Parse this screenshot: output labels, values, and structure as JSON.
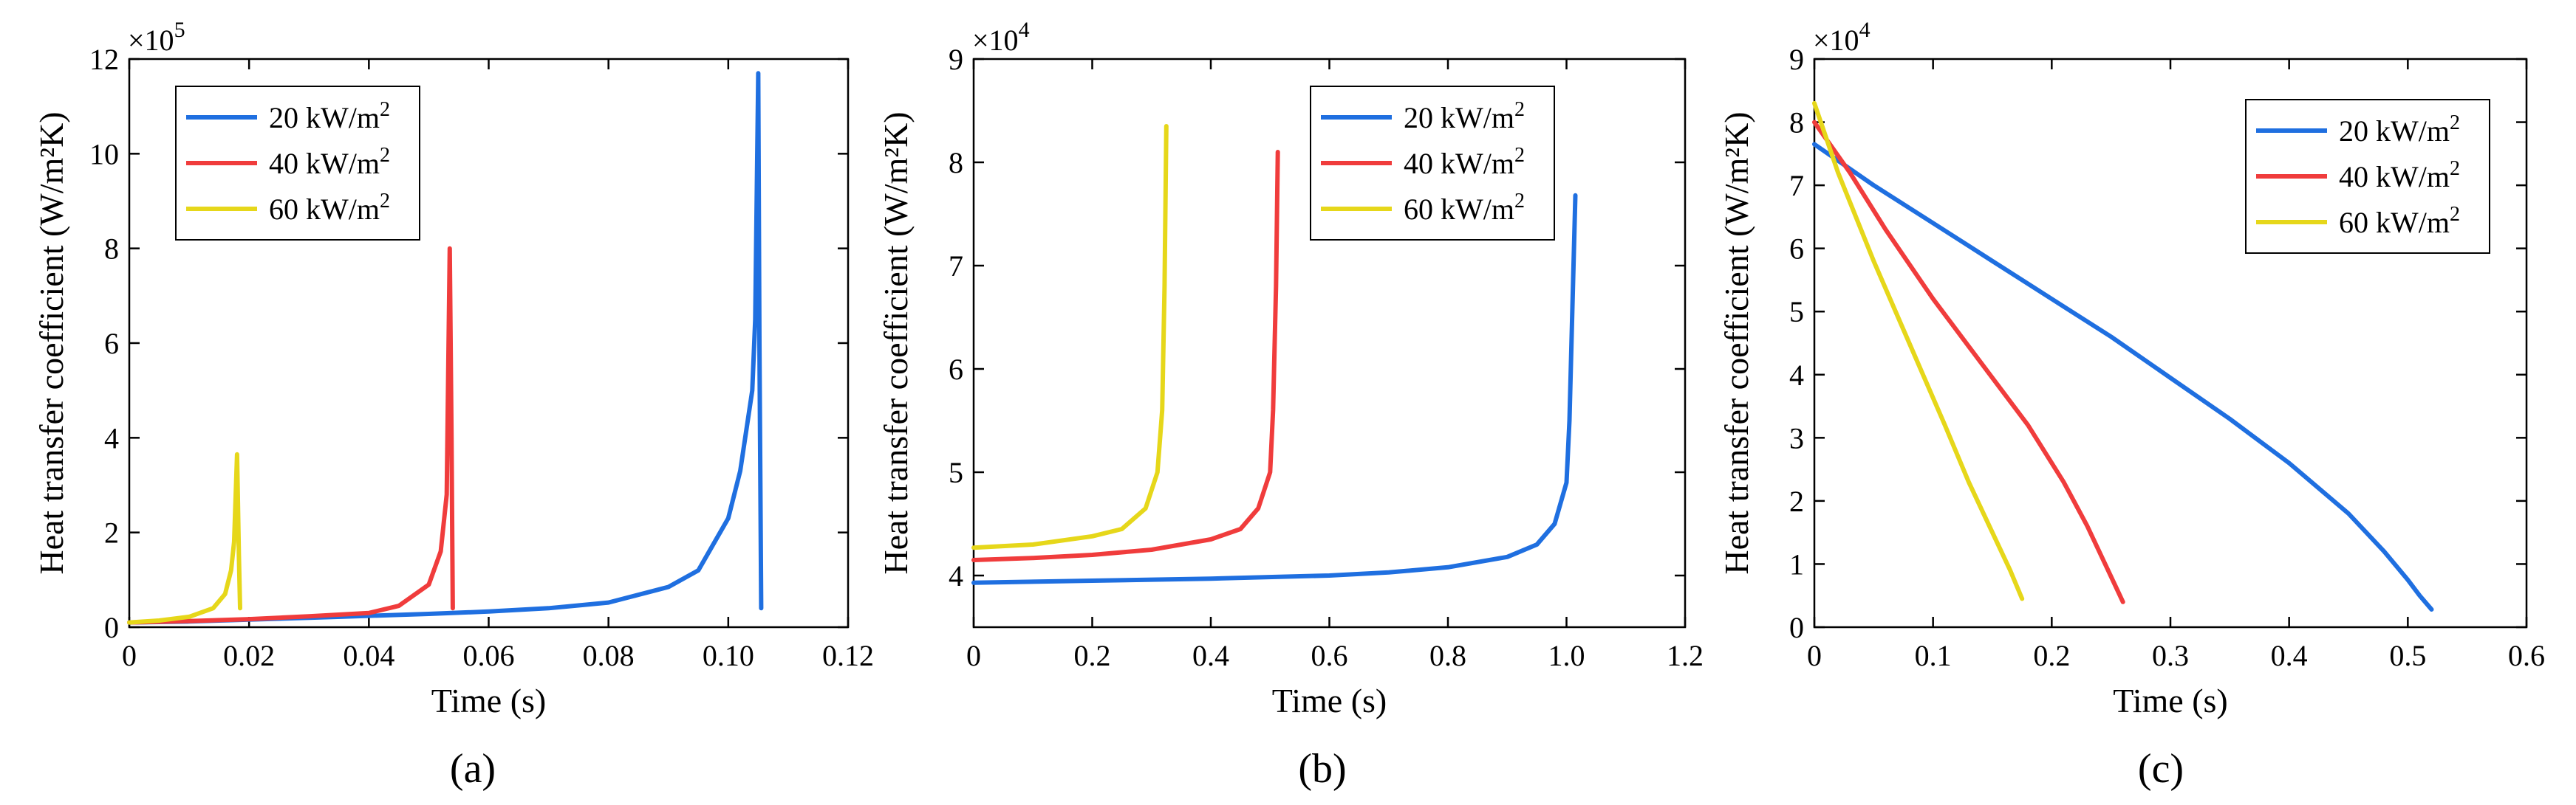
{
  "chart_data": [
    {
      "type": "line",
      "panel": "a",
      "caption": "(a)",
      "xlabel": "Time (s)",
      "ylabel": "Heat transfer coefficient (W/m²K)",
      "y_multiplier": "×10",
      "y_exponent": "5",
      "xlim": [
        0,
        0.12
      ],
      "ylim": [
        0,
        12
      ],
      "xticks": [
        0,
        0.02,
        0.04,
        0.06,
        0.08,
        0.1,
        0.12
      ],
      "xtick_labels": [
        "0",
        "0.02",
        "0.04",
        "0.06",
        "0.08",
        "0.10",
        "0.12"
      ],
      "yticks": [
        0,
        2,
        4,
        6,
        8,
        10,
        12
      ],
      "ytick_labels": [
        "0",
        "2",
        "4",
        "6",
        "8",
        "10",
        "12"
      ],
      "legend_position": "top-left",
      "series": [
        {
          "name": "20 kW/m",
          "sup": "2",
          "color": "#1f6fe0",
          "x": [
            0,
            0.01,
            0.02,
            0.03,
            0.04,
            0.05,
            0.06,
            0.07,
            0.08,
            0.09,
            0.095,
            0.1,
            0.102,
            0.104,
            0.1045,
            0.105,
            0.1052,
            0.1055
          ],
          "y": [
            0.1,
            0.12,
            0.16,
            0.2,
            0.24,
            0.28,
            0.33,
            0.4,
            0.52,
            0.85,
            1.2,
            2.3,
            3.3,
            5.0,
            6.5,
            11.7,
            6.0,
            0.4
          ]
        },
        {
          "name": "40 kW/m",
          "sup": "2",
          "color": "#f03c3c",
          "x": [
            0,
            0.01,
            0.02,
            0.03,
            0.04,
            0.045,
            0.05,
            0.052,
            0.053,
            0.0535,
            0.0538,
            0.054
          ],
          "y": [
            0.1,
            0.13,
            0.17,
            0.23,
            0.3,
            0.45,
            0.9,
            1.6,
            2.8,
            8.0,
            4.0,
            0.4
          ]
        },
        {
          "name": "60 kW/m",
          "sup": "2",
          "color": "#e6d71a",
          "x": [
            0,
            0.005,
            0.01,
            0.014,
            0.016,
            0.017,
            0.0175,
            0.018,
            0.0183,
            0.0185
          ],
          "y": [
            0.1,
            0.14,
            0.22,
            0.4,
            0.7,
            1.2,
            1.8,
            3.65,
            1.5,
            0.4
          ]
        }
      ]
    },
    {
      "type": "line",
      "panel": "b",
      "caption": "(b)",
      "xlabel": "Time (s)",
      "ylabel": "Heat transfer coefficient (W/m²K)",
      "y_multiplier": "×10",
      "y_exponent": "4",
      "xlim": [
        0,
        1.2
      ],
      "ylim": [
        3.5,
        9
      ],
      "xticks": [
        0,
        0.2,
        0.4,
        0.6,
        0.8,
        1.0,
        1.2
      ],
      "xtick_labels": [
        "0",
        "0.2",
        "0.4",
        "0.6",
        "0.8",
        "1.0",
        "1.2"
      ],
      "yticks": [
        4,
        5,
        6,
        7,
        8,
        9
      ],
      "ytick_labels": [
        "4",
        "5",
        "6",
        "7",
        "8",
        "9"
      ],
      "legend_position": "top-right",
      "series": [
        {
          "name": "20 kW/m",
          "sup": "2",
          "color": "#1f6fe0",
          "x": [
            0,
            0.2,
            0.4,
            0.6,
            0.7,
            0.8,
            0.9,
            0.95,
            0.98,
            1.0,
            1.005,
            1.01,
            1.015
          ],
          "y": [
            3.93,
            3.95,
            3.97,
            4.0,
            4.03,
            4.08,
            4.18,
            4.3,
            4.5,
            4.9,
            5.5,
            6.6,
            7.68
          ]
        },
        {
          "name": "40 kW/m",
          "sup": "2",
          "color": "#f03c3c",
          "x": [
            0,
            0.1,
            0.2,
            0.3,
            0.4,
            0.45,
            0.48,
            0.5,
            0.505,
            0.51,
            0.513
          ],
          "y": [
            4.15,
            4.17,
            4.2,
            4.25,
            4.35,
            4.45,
            4.65,
            5.0,
            5.6,
            6.8,
            8.1
          ]
        },
        {
          "name": "60 kW/m",
          "sup": "2",
          "color": "#e6d71a",
          "x": [
            0,
            0.1,
            0.2,
            0.25,
            0.29,
            0.31,
            0.318,
            0.322,
            0.325
          ],
          "y": [
            4.27,
            4.3,
            4.38,
            4.45,
            4.65,
            5.0,
            5.6,
            6.8,
            8.35
          ]
        }
      ]
    },
    {
      "type": "line",
      "panel": "c",
      "caption": "(c)",
      "xlabel": "Time (s)",
      "ylabel": "Heat transfer coefficient (W/m²K)",
      "y_multiplier": "×10",
      "y_exponent": "4",
      "xlim": [
        0,
        0.6
      ],
      "ylim": [
        0,
        9
      ],
      "xticks": [
        0,
        0.1,
        0.2,
        0.3,
        0.4,
        0.5,
        0.6
      ],
      "xtick_labels": [
        "0",
        "0.1",
        "0.2",
        "0.3",
        "0.4",
        "0.5",
        "0.6"
      ],
      "yticks": [
        0,
        1,
        2,
        3,
        4,
        5,
        6,
        7,
        8,
        9
      ],
      "ytick_labels": [
        "0",
        "1",
        "2",
        "3",
        "4",
        "5",
        "6",
        "7",
        "8",
        "9"
      ],
      "legend_position": "top-right",
      "series": [
        {
          "name": "20 kW/m",
          "sup": "2",
          "color": "#1f6fe0",
          "x": [
            0,
            0.05,
            0.1,
            0.15,
            0.2,
            0.25,
            0.3,
            0.35,
            0.4,
            0.45,
            0.48,
            0.5,
            0.51,
            0.52
          ],
          "y": [
            7.65,
            7.0,
            6.4,
            5.8,
            5.2,
            4.6,
            3.95,
            3.3,
            2.6,
            1.8,
            1.2,
            0.75,
            0.5,
            0.28
          ]
        },
        {
          "name": "40 kW/m",
          "sup": "2",
          "color": "#f03c3c",
          "x": [
            0,
            0.03,
            0.06,
            0.1,
            0.14,
            0.18,
            0.21,
            0.23,
            0.245,
            0.255,
            0.26
          ],
          "y": [
            8.0,
            7.2,
            6.3,
            5.2,
            4.2,
            3.2,
            2.3,
            1.6,
            1.0,
            0.6,
            0.4
          ]
        },
        {
          "name": "60 kW/m",
          "sup": "2",
          "color": "#e6d71a",
          "x": [
            0,
            0.02,
            0.05,
            0.08,
            0.11,
            0.13,
            0.15,
            0.165,
            0.175
          ],
          "y": [
            8.3,
            7.2,
            5.8,
            4.5,
            3.2,
            2.3,
            1.5,
            0.9,
            0.45
          ]
        }
      ]
    }
  ]
}
